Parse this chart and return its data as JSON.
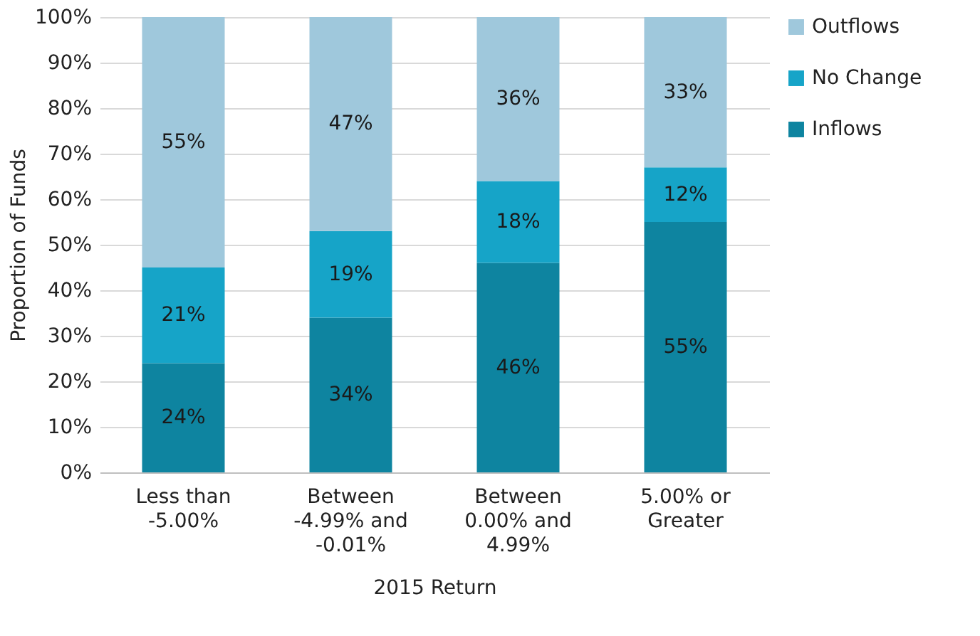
{
  "chart_data": {
    "type": "bar",
    "stacked": true,
    "xlabel": "2015 Return",
    "ylabel": "Proportion of Funds",
    "categories": [
      "Less than -5.00%",
      "Between -4.99% and -0.01%",
      "Between 0.00% and 4.99%",
      "5.00% or Greater"
    ],
    "series": [
      {
        "name": "Inflows",
        "color": "#0e84a0",
        "values": [
          24,
          34,
          46,
          55
        ],
        "value_labels": [
          "24%",
          "34%",
          "46%",
          "55%"
        ]
      },
      {
        "name": "No Change",
        "color": "#16a4c8",
        "values": [
          21,
          19,
          18,
          12
        ],
        "value_labels": [
          "21%",
          "19%",
          "18%",
          "12%"
        ]
      },
      {
        "name": "Outflows",
        "color": "#9fc8dc",
        "values": [
          55,
          47,
          36,
          33
        ],
        "value_labels": [
          "55%",
          "47%",
          "36%",
          "33%"
        ]
      }
    ],
    "ylim": [
      0,
      100
    ],
    "yticks": [
      {
        "value": 0,
        "label": "0%"
      },
      {
        "value": 10,
        "label": "10%"
      },
      {
        "value": 20,
        "label": "20%"
      },
      {
        "value": 30,
        "label": "30%"
      },
      {
        "value": 40,
        "label": "40%"
      },
      {
        "value": 50,
        "label": "50%"
      },
      {
        "value": 60,
        "label": "60%"
      },
      {
        "value": 70,
        "label": "70%"
      },
      {
        "value": 80,
        "label": "80%"
      },
      {
        "value": 90,
        "label": "90%"
      },
      {
        "value": 100,
        "label": "100%"
      }
    ],
    "grid": "y",
    "legend": "right"
  }
}
